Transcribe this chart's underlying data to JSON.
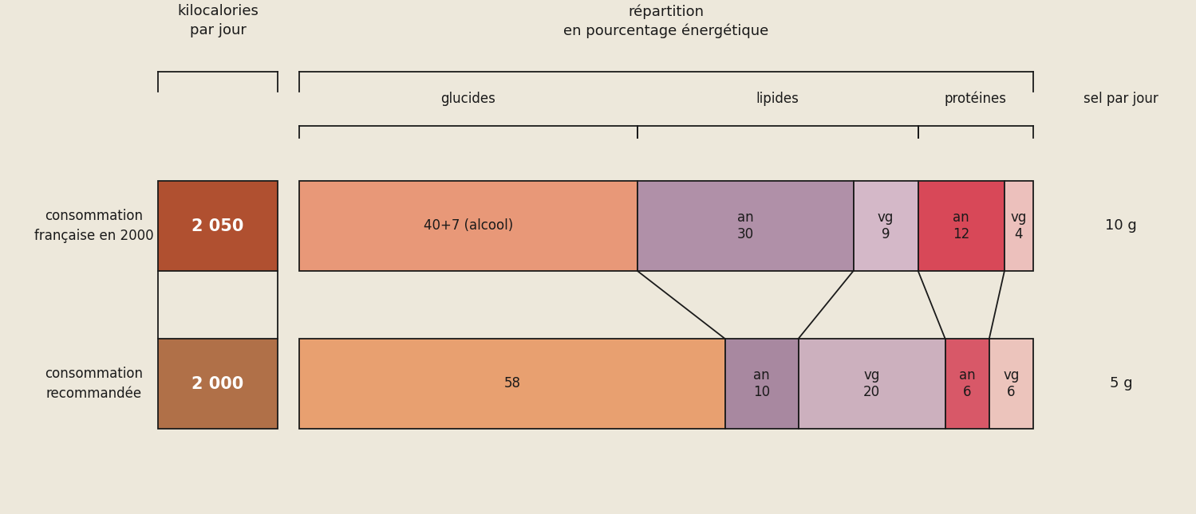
{
  "bg_color": "#ede8db",
  "line_color": "#1a1a1a",
  "header1_text": "kilocalories\npar jour",
  "header2_text": "répartition\nen pourcentage énergétique",
  "header_glucides": "glucides",
  "header_lipides": "lipides",
  "header_proteines": "protéines",
  "header_sel": "sel par jour",
  "row1_label": "consommation\nfrançaise en 2000",
  "row2_label": "consommation\nrecommandée",
  "row1_kcal": "2 050",
  "row2_kcal": "2 000",
  "row1_kcal_color": "#b05030",
  "row2_kcal_color": "#b07048",
  "row1_glucides_text": "40+7 (alcool)",
  "row1_glucides_color": "#e89878",
  "row2_glucides_text": "58",
  "row2_glucides_color": "#e8a070",
  "row1_lipides_an_text": "an\n30",
  "row1_lipides_an_color": "#b090a8",
  "row1_lipides_vg_text": "vg\n9",
  "row1_lipides_vg_color": "#d4b8c8",
  "row2_lipides_an_text": "an\n10",
  "row2_lipides_an_color": "#a888a0",
  "row2_lipides_vg_text": "vg\n20",
  "row2_lipides_vg_color": "#ccb0be",
  "row1_proteines_an_text": "an\n12",
  "row1_proteines_an_color": "#d84858",
  "row1_proteines_vg_text": "vg\n4",
  "row1_proteines_vg_color": "#ecc0bc",
  "row2_proteines_an_text": "an\n6",
  "row2_proteines_an_color": "#d85868",
  "row2_proteines_vg_text": "vg\n6",
  "row2_proteines_vg_color": "#ecc4bc",
  "row1_sel": "10 g",
  "row2_sel": "5 g",
  "row1_proportions": [
    47,
    30,
    9,
    12,
    4
  ],
  "row2_proportions": [
    58,
    10,
    20,
    6,
    6
  ]
}
